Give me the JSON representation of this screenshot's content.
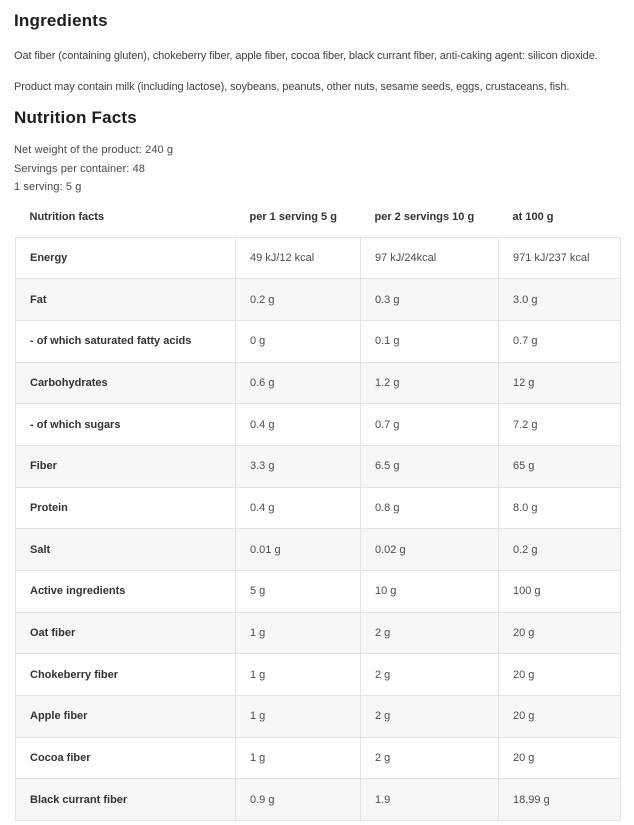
{
  "colors": {
    "heading_text": "#1d1d1d",
    "body_text": "#424242",
    "table_border": "#e3e3e3",
    "row_stripe": "#f7f7f7"
  },
  "ingredients": {
    "title": "Ingredients",
    "description": "Oat fiber (containing gluten), chokeberry fiber, apple fiber, cocoa fiber, black currant fiber, anti-caking agent: silicon dioxide.",
    "allergen_notice": "Product may contain milk (including lactose), soybeans, peanuts, other nuts, sesame seeds, eggs, crustaceans, fish."
  },
  "nutrition": {
    "title": "Nutrition Facts",
    "meta": {
      "net_weight": "Net weight of the product: 240 g",
      "servings_per_container": "Servings per container: 48",
      "serving_size": "1 serving: 5 g"
    },
    "table": {
      "headers": {
        "label": "Nutrition facts",
        "per_serving": "per 1 serving 5 g",
        "per_2_servings": "per 2 servings 10 g",
        "per_100g": "at 100 g"
      },
      "rows": [
        {
          "label": "Energy",
          "per_serving": "49 kJ/12 kcal",
          "per_2_servings": "97 kJ/24kcal",
          "per_100g": "971 kJ/237 kcal"
        },
        {
          "label": "Fat",
          "per_serving": "0.2 g",
          "per_2_servings": "0.3 g",
          "per_100g": "3.0 g"
        },
        {
          "label": "- of which saturated fatty acids",
          "per_serving": "0 g",
          "per_2_servings": "0.1 g",
          "per_100g": "0.7 g"
        },
        {
          "label": "Carbohydrates",
          "per_serving": "0.6 g",
          "per_2_servings": "1.2 g",
          "per_100g": "12 g"
        },
        {
          "label": "- of which sugars",
          "per_serving": "0.4 g",
          "per_2_servings": "0.7 g",
          "per_100g": "7.2 g"
        },
        {
          "label": "Fiber",
          "per_serving": "3.3 g",
          "per_2_servings": "6.5 g",
          "per_100g": "65 g"
        },
        {
          "label": "Protein",
          "per_serving": "0.4 g",
          "per_2_servings": "0.8 g",
          "per_100g": "8.0 g"
        },
        {
          "label": "Salt",
          "per_serving": "0.01 g",
          "per_2_servings": "0.02 g",
          "per_100g": "0.2 g"
        },
        {
          "label": "Active ingredients",
          "per_serving": "5 g",
          "per_2_servings": "10 g",
          "per_100g": "100 g"
        },
        {
          "label": "Oat fiber",
          "per_serving": "1 g",
          "per_2_servings": "2 g",
          "per_100g": "20 g"
        },
        {
          "label": "Chokeberry fiber",
          "per_serving": "1 g",
          "per_2_servings": "2 g",
          "per_100g": "20 g"
        },
        {
          "label": "Apple fiber",
          "per_serving": "1 g",
          "per_2_servings": "2 g",
          "per_100g": "20 g"
        },
        {
          "label": "Cocoa fiber",
          "per_serving": "1 g",
          "per_2_servings": "2 g",
          "per_100g": "20 g"
        },
        {
          "label": "Black currant fiber",
          "per_serving": "0.9 g",
          "per_2_servings": "1.9",
          "per_100g": "18.99 g"
        }
      ]
    }
  }
}
